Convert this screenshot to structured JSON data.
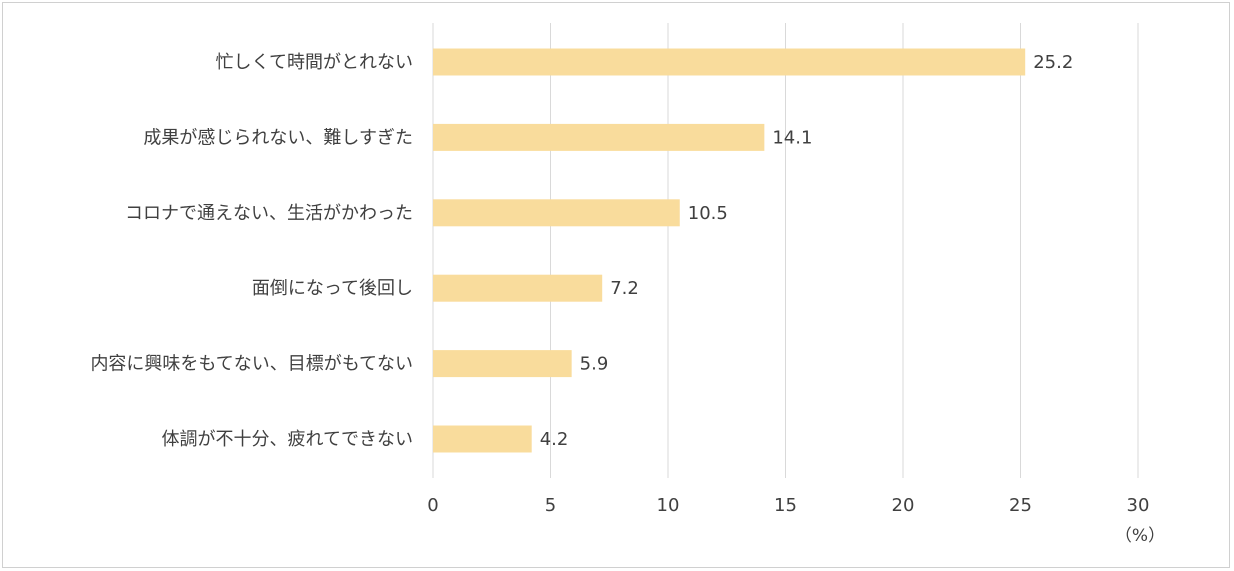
{
  "chart_data": {
    "type": "bar",
    "orientation": "horizontal",
    "categories": [
      "忙しくて時間がとれない",
      "成果が感じられない、難しすぎた",
      "コロナで通えない、生活がかわった",
      "面倒になって後回し",
      "内容に興味をもてない、目標がもてない",
      "体調が不十分、疲れてできない"
    ],
    "values": [
      25.2,
      14.1,
      10.5,
      7.2,
      5.9,
      4.2
    ],
    "value_labels": [
      "25.2",
      "14.1",
      "10.5",
      "7.2",
      "5.9",
      "4.2"
    ],
    "x_ticks": [
      "0",
      "5",
      "10",
      "15",
      "20",
      "25",
      "30"
    ],
    "xlim": [
      0,
      30
    ],
    "x_unit": "（%）",
    "grid": "vertical",
    "bar_color": "#f9dc9c"
  }
}
